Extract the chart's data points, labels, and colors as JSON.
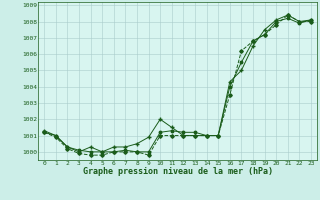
{
  "title": "Graphe pression niveau de la mer (hPa)",
  "background_color": "#cceee8",
  "plot_bg_color": "#d8f5f0",
  "grid_color": "#aacccc",
  "line_color": "#1a5c1a",
  "xlim": [
    -0.5,
    23.5
  ],
  "ylim": [
    999.5,
    1009.2
  ],
  "yticks": [
    1000,
    1001,
    1002,
    1003,
    1004,
    1005,
    1006,
    1007,
    1008,
    1009
  ],
  "xticks": [
    0,
    1,
    2,
    3,
    4,
    5,
    6,
    7,
    8,
    9,
    10,
    11,
    12,
    13,
    14,
    15,
    16,
    17,
    18,
    19,
    20,
    21,
    22,
    23
  ],
  "series1_x": [
    0,
    1,
    2,
    3,
    4,
    5,
    6,
    7,
    8,
    9,
    10,
    11,
    12,
    13,
    14,
    15,
    16,
    17,
    18,
    19,
    20,
    21,
    22,
    23
  ],
  "series1_y": [
    1001.3,
    1001.0,
    1000.3,
    1000.0,
    1000.3,
    1000.0,
    1000.3,
    1000.3,
    1000.5,
    1000.9,
    1002.0,
    1001.5,
    1001.0,
    1001.0,
    1001.0,
    1001.0,
    1004.3,
    1005.0,
    1006.5,
    1007.5,
    1008.1,
    1008.4,
    1008.0,
    1008.1
  ],
  "series2_x": [
    0,
    1,
    2,
    3,
    4,
    5,
    6,
    7,
    8,
    9,
    10,
    11,
    12,
    13,
    14,
    15,
    16,
    17,
    18,
    19,
    20,
    21,
    22,
    23
  ],
  "series2_y": [
    1001.2,
    1000.9,
    1000.2,
    999.9,
    999.8,
    999.8,
    1000.0,
    1000.0,
    1000.0,
    999.8,
    1001.0,
    1001.0,
    1001.0,
    1001.0,
    1001.0,
    1001.0,
    1003.5,
    1006.2,
    1006.8,
    1007.2,
    1007.8,
    1008.4,
    1008.0,
    1008.0
  ],
  "series3_x": [
    0,
    1,
    2,
    3,
    4,
    5,
    6,
    7,
    8,
    9,
    10,
    11,
    12,
    13,
    14,
    15,
    16,
    17,
    18,
    19,
    20,
    21,
    22,
    23
  ],
  "series3_y": [
    1001.2,
    1001.0,
    1000.3,
    1000.1,
    1000.0,
    1000.0,
    1000.0,
    1000.1,
    1000.0,
    1000.0,
    1001.2,
    1001.3,
    1001.2,
    1001.2,
    1001.0,
    1001.0,
    1004.0,
    1005.5,
    1006.8,
    1007.2,
    1008.0,
    1008.2,
    1007.9,
    1008.1
  ],
  "xlabel_fontsize": 6.0,
  "tick_fontsize": 4.5
}
